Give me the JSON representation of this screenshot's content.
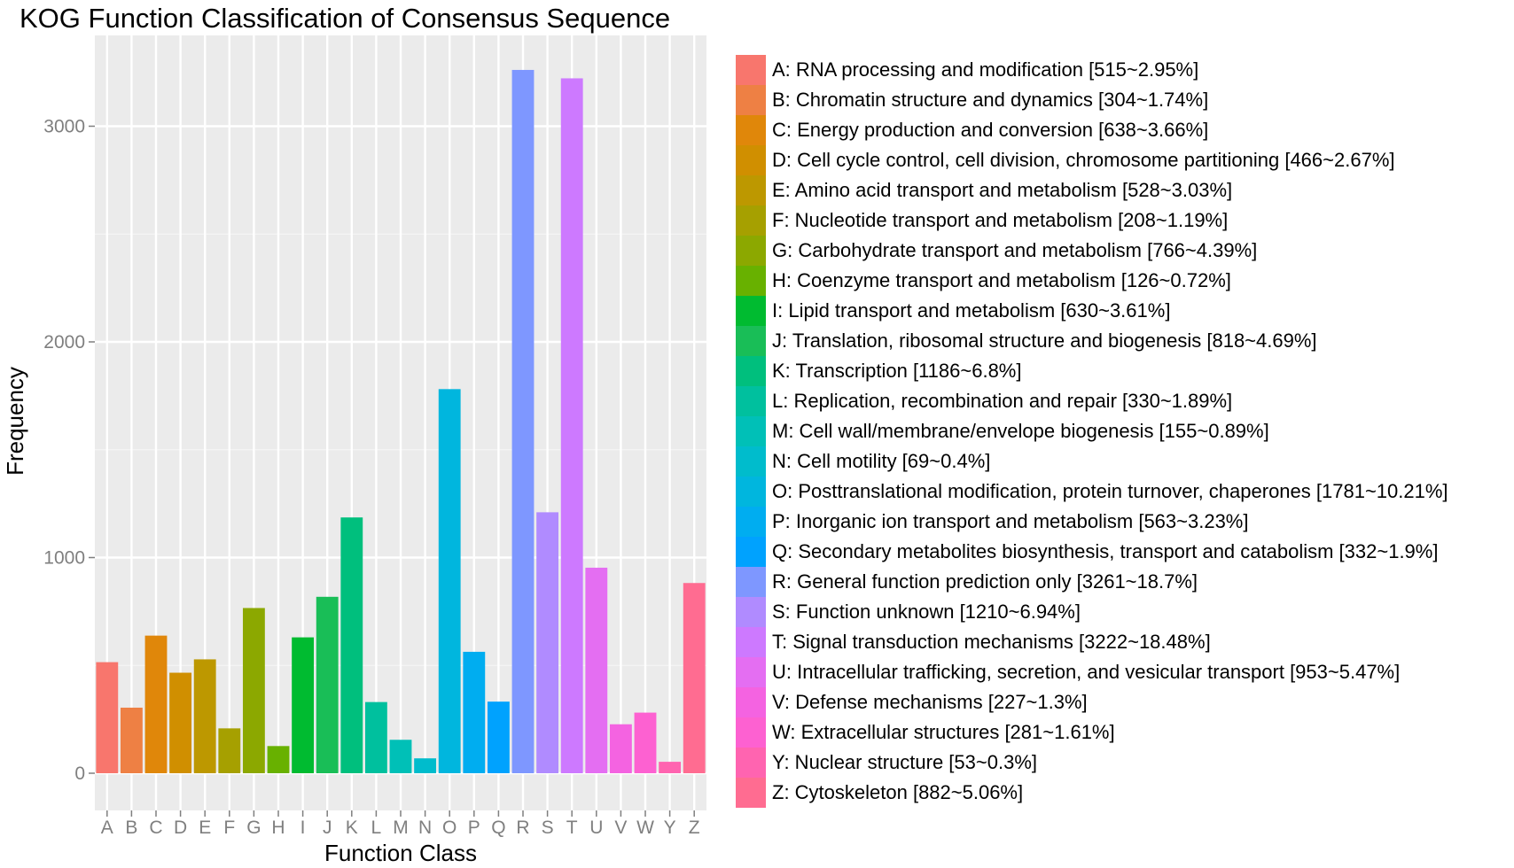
{
  "chart_data": {
    "type": "bar",
    "title": "KOG Function Classification of Consensus Sequence",
    "xlabel": "Function Class",
    "ylabel": "Frequency",
    "ylim": [
      0,
      3300
    ],
    "yticks": [
      0,
      1000,
      2000,
      3000
    ],
    "grid": true,
    "legend_position": "right",
    "categories": [
      "A",
      "B",
      "C",
      "D",
      "E",
      "F",
      "G",
      "H",
      "I",
      "J",
      "K",
      "L",
      "M",
      "N",
      "O",
      "P",
      "Q",
      "R",
      "S",
      "T",
      "U",
      "V",
      "W",
      "Y",
      "Z"
    ],
    "values": [
      515,
      304,
      638,
      466,
      528,
      208,
      766,
      126,
      630,
      818,
      1186,
      330,
      155,
      69,
      1781,
      563,
      332,
      3261,
      1210,
      3222,
      953,
      227,
      281,
      53,
      882
    ],
    "colors": [
      "#F8766D",
      "#EE8044",
      "#E0870A",
      "#D08F00",
      "#BD9800",
      "#A6A000",
      "#8CA800",
      "#68B100",
      "#00BB30",
      "#19BE57",
      "#00BF7D",
      "#00C09E",
      "#00C0B7",
      "#00BCCC",
      "#00B6DE",
      "#00ADF0",
      "#00A2FE",
      "#7E97FF",
      "#B08BFF",
      "#CD79FF",
      "#E46EF2",
      "#F463E1",
      "#FD61D1",
      "#FF64B0",
      "#FF6C91"
    ],
    "legend": [
      "A: RNA processing and modification [515~2.95%]",
      "B: Chromatin structure and dynamics [304~1.74%]",
      "C: Energy production and conversion [638~3.66%]",
      "D: Cell cycle control, cell division, chromosome partitioning [466~2.67%]",
      "E: Amino acid transport and metabolism [528~3.03%]",
      "F: Nucleotide transport and metabolism [208~1.19%]",
      "G: Carbohydrate transport and metabolism [766~4.39%]",
      "H: Coenzyme transport and metabolism [126~0.72%]",
      "I: Lipid transport and metabolism [630~3.61%]",
      "J: Translation, ribosomal structure and biogenesis [818~4.69%]",
      "K: Transcription [1186~6.8%]",
      "L: Replication, recombination and repair [330~1.89%]",
      "M: Cell wall/membrane/envelope biogenesis [155~0.89%]",
      "N: Cell motility [69~0.4%]",
      "O: Posttranslational modification, protein turnover, chaperones [1781~10.21%]",
      "P: Inorganic ion transport and metabolism [563~3.23%]",
      "Q: Secondary metabolites biosynthesis, transport and catabolism [332~1.9%]",
      "R: General function prediction only [3261~18.7%]",
      "S: Function unknown [1210~6.94%]",
      "T: Signal transduction mechanisms [3222~18.48%]",
      "U: Intracellular trafficking, secretion, and vesicular transport [953~5.47%]",
      "V: Defense mechanisms [227~1.3%]",
      "W: Extracellular structures [281~1.61%]",
      "Y: Nuclear structure [53~0.3%]",
      "Z: Cytoskeleton [882~5.06%]"
    ]
  }
}
